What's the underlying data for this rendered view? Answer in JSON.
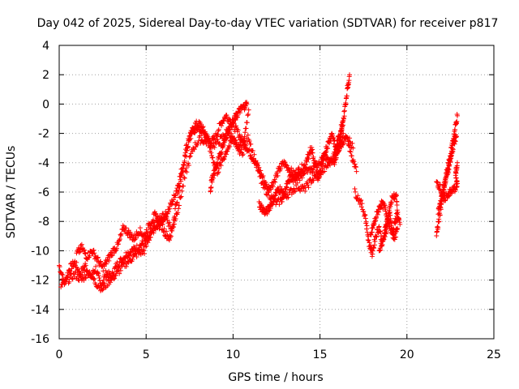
{
  "chart_data": {
    "type": "scatter",
    "title": "Day 042 of 2025, Sidereal Day-to-day VTEC variation (SDTVAR) for receiver p817",
    "xlabel": "GPS time / hours",
    "ylabel": "SDTVAR / TECUs",
    "xlim": [
      0,
      25
    ],
    "ylim": [
      -16,
      4
    ],
    "xticks": [
      "0",
      "5",
      "10",
      "15",
      "20",
      "25"
    ],
    "yticks": [
      "4",
      "2",
      "0",
      "-2",
      "-4",
      "-6",
      "-8",
      "-10",
      "-12",
      "-14",
      "-16"
    ],
    "grid": true,
    "marker": "+",
    "series": [
      {
        "name": "SDTVAR",
        "color": "#ff0000",
        "traces": [
          [
            [
              0.0,
              -11.0
            ],
            [
              0.3,
              -12.2
            ],
            [
              0.6,
              -11.2
            ],
            [
              0.9,
              -10.8
            ],
            [
              1.2,
              -11.6
            ],
            [
              1.5,
              -11.0
            ],
            [
              1.8,
              -11.8
            ],
            [
              2.1,
              -11.2
            ],
            [
              2.4,
              -12.4
            ],
            [
              2.7,
              -11.5
            ],
            [
              3.0,
              -11.8
            ],
            [
              3.3,
              -11.0
            ],
            [
              3.6,
              -10.6
            ],
            [
              3.9,
              -10.2
            ],
            [
              4.2,
              -10.0
            ],
            [
              4.5,
              -9.8
            ],
            [
              4.8,
              -9.5
            ],
            [
              5.1,
              -9.2
            ],
            [
              5.4,
              -8.6
            ],
            [
              5.7,
              -8.4
            ],
            [
              6.0,
              -7.8
            ],
            [
              6.3,
              -7.2
            ],
            [
              6.6,
              -6.4
            ],
            [
              6.9,
              -5.2
            ],
            [
              7.2,
              -3.8
            ],
            [
              7.5,
              -2.3
            ],
            [
              7.8,
              -1.4
            ],
            [
              8.1,
              -1.4
            ],
            [
              8.4,
              -2.0
            ],
            [
              8.7,
              -2.7
            ],
            [
              9.0,
              -2.2
            ],
            [
              9.3,
              -1.3
            ],
            [
              9.6,
              -0.8
            ],
            [
              9.9,
              -1.2
            ],
            [
              10.2,
              -1.8
            ],
            [
              10.5,
              -2.4
            ],
            [
              10.8,
              -3.0
            ],
            [
              11.1,
              -3.6
            ],
            [
              11.4,
              -4.2
            ],
            [
              11.7,
              -5.0
            ],
            [
              12.0,
              -5.8
            ],
            [
              12.3,
              -5.4
            ],
            [
              12.6,
              -4.6
            ],
            [
              12.9,
              -4.0
            ],
            [
              13.2,
              -4.4
            ],
            [
              13.5,
              -4.8
            ],
            [
              13.8,
              -4.5
            ],
            [
              14.1,
              -4.2
            ],
            [
              14.4,
              -4.6
            ],
            [
              14.7,
              -4.3
            ],
            [
              15.0,
              -4.0
            ],
            [
              15.3,
              -3.6
            ],
            [
              15.6,
              -4.0
            ],
            [
              15.9,
              -3.4
            ],
            [
              16.2,
              -2.8
            ],
            [
              16.5,
              -2.2
            ],
            [
              16.8,
              -3.4
            ],
            [
              17.1,
              -4.6
            ]
          ],
          [
            [
              0.1,
              -12.4
            ],
            [
              0.5,
              -12.0
            ],
            [
              0.9,
              -11.6
            ],
            [
              1.3,
              -12.0
            ],
            [
              1.7,
              -11.4
            ],
            [
              2.1,
              -12.2
            ],
            [
              2.5,
              -12.6
            ],
            [
              2.9,
              -12.0
            ],
            [
              3.3,
              -11.6
            ],
            [
              3.7,
              -11.0
            ],
            [
              4.1,
              -10.6
            ],
            [
              4.5,
              -10.2
            ],
            [
              4.9,
              -10.0
            ],
            [
              5.3,
              -8.8
            ],
            [
              5.7,
              -7.8
            ],
            [
              6.1,
              -7.6
            ],
            [
              6.5,
              -8.6
            ],
            [
              6.9,
              -6.8
            ],
            [
              7.3,
              -4.6
            ],
            [
              7.7,
              -3.0
            ],
            [
              8.1,
              -2.4
            ],
            [
              8.5,
              -2.6
            ],
            [
              8.9,
              -2.8
            ],
            [
              9.3,
              -2.4
            ],
            [
              9.7,
              -1.8
            ],
            [
              10.1,
              -2.6
            ],
            [
              10.5,
              -3.4
            ],
            [
              10.9,
              -2.2
            ],
            [
              11.3,
              -4.0
            ],
            [
              11.7,
              -5.6
            ],
            [
              12.1,
              -6.2
            ],
            [
              12.5,
              -6.8
            ],
            [
              12.9,
              -6.4
            ],
            [
              13.3,
              -6.0
            ],
            [
              13.7,
              -5.6
            ],
            [
              14.1,
              -5.8
            ],
            [
              14.5,
              -5.2
            ],
            [
              14.9,
              -4.8
            ],
            [
              15.3,
              -4.4
            ],
            [
              15.7,
              -3.8
            ],
            [
              16.1,
              -2.6
            ],
            [
              16.5,
              -2.0
            ],
            [
              16.9,
              -3.0
            ]
          ],
          [
            [
              1.0,
              -10.2
            ],
            [
              1.3,
              -9.8
            ],
            [
              1.6,
              -10.4
            ],
            [
              1.9,
              -10.0
            ],
            [
              2.2,
              -10.6
            ],
            [
              2.5,
              -11.2
            ],
            [
              2.8,
              -10.6
            ],
            [
              3.1,
              -10.0
            ],
            [
              3.4,
              -9.6
            ],
            [
              3.7,
              -8.4
            ],
            [
              4.0,
              -8.8
            ],
            [
              4.3,
              -9.2
            ],
            [
              4.6,
              -8.6
            ],
            [
              4.9,
              -9.0
            ],
            [
              5.2,
              -8.2
            ],
            [
              5.5,
              -7.6
            ],
            [
              5.8,
              -8.0
            ],
            [
              6.1,
              -8.8
            ],
            [
              6.4,
              -9.2
            ],
            [
              6.7,
              -7.0
            ],
            [
              7.0,
              -5.2
            ],
            [
              7.3,
              -3.0
            ],
            [
              7.6,
              -2.0
            ],
            [
              7.9,
              -1.6
            ],
            [
              8.2,
              -1.8
            ],
            [
              8.5,
              -2.2
            ],
            [
              8.8,
              -3.6
            ],
            [
              9.1,
              -4.6
            ],
            [
              9.4,
              -3.8
            ],
            [
              9.7,
              -3.0
            ],
            [
              10.0,
              -2.4
            ],
            [
              10.3,
              -3.0
            ],
            [
              10.6,
              -2.6
            ],
            [
              10.9,
              -0.4
            ]
          ],
          [
            [
              8.7,
              -5.8
            ],
            [
              8.8,
              -5.0
            ],
            [
              9.0,
              -4.4
            ],
            [
              9.2,
              -3.6
            ],
            [
              9.4,
              -2.8
            ],
            [
              9.6,
              -2.2
            ],
            [
              9.8,
              -1.6
            ],
            [
              10.0,
              -1.2
            ],
            [
              10.2,
              -0.8
            ],
            [
              10.4,
              -0.4
            ],
            [
              10.6,
              -0.2
            ],
            [
              10.8,
              0.0
            ]
          ],
          [
            [
              11.5,
              -6.8
            ],
            [
              11.7,
              -7.2
            ],
            [
              11.9,
              -7.4
            ],
            [
              12.1,
              -7.0
            ],
            [
              12.3,
              -6.6
            ],
            [
              12.5,
              -6.0
            ],
            [
              12.7,
              -5.8
            ],
            [
              12.9,
              -6.2
            ],
            [
              13.1,
              -5.6
            ],
            [
              13.3,
              -5.0
            ],
            [
              13.5,
              -5.2
            ],
            [
              13.7,
              -4.8
            ],
            [
              13.9,
              -5.0
            ],
            [
              14.1,
              -4.6
            ],
            [
              14.3,
              -3.6
            ],
            [
              14.5,
              -3.0
            ],
            [
              14.7,
              -4.0
            ],
            [
              14.9,
              -5.2
            ],
            [
              15.1,
              -4.2
            ],
            [
              15.3,
              -3.2
            ],
            [
              15.5,
              -2.6
            ],
            [
              15.7,
              -2.0
            ],
            [
              15.9,
              -3.0
            ],
            [
              16.1,
              -2.2
            ],
            [
              16.3,
              -1.2
            ]
          ],
          [
            [
              15.8,
              -4.0
            ],
            [
              15.95,
              -3.4
            ],
            [
              16.1,
              -2.6
            ],
            [
              16.25,
              -1.8
            ],
            [
              16.4,
              -0.6
            ],
            [
              16.55,
              0.8
            ],
            [
              16.7,
              2.0
            ]
          ],
          [
            [
              17.0,
              -6.0
            ],
            [
              17.3,
              -6.6
            ],
            [
              17.6,
              -7.6
            ],
            [
              17.8,
              -9.4
            ],
            [
              18.0,
              -10.2
            ],
            [
              18.2,
              -9.0
            ],
            [
              18.4,
              -8.4
            ],
            [
              18.6,
              -9.6
            ],
            [
              18.8,
              -8.2
            ],
            [
              19.0,
              -7.4
            ],
            [
              19.2,
              -8.8
            ],
            [
              19.4,
              -7.6
            ],
            [
              19.6,
              -8.2
            ]
          ],
          [
            [
              17.9,
              -9.0
            ],
            [
              18.1,
              -8.2
            ],
            [
              18.3,
              -7.4
            ],
            [
              18.5,
              -6.8
            ],
            [
              18.7,
              -7.0
            ],
            [
              18.9,
              -7.8
            ],
            [
              19.1,
              -8.6
            ],
            [
              19.3,
              -9.2
            ],
            [
              19.5,
              -8.0
            ],
            [
              19.4,
              -6.4
            ],
            [
              19.2,
              -6.2
            ],
            [
              19.0,
              -7.2
            ],
            [
              18.8,
              -8.6
            ],
            [
              18.6,
              -9.4
            ],
            [
              18.4,
              -10.0
            ]
          ],
          [
            [
              21.7,
              -9.0
            ],
            [
              21.85,
              -7.8
            ],
            [
              22.0,
              -6.6
            ],
            [
              22.15,
              -5.6
            ],
            [
              22.3,
              -4.6
            ],
            [
              22.45,
              -3.8
            ],
            [
              22.6,
              -2.8
            ],
            [
              22.75,
              -1.8
            ],
            [
              22.9,
              -0.8
            ]
          ],
          [
            [
              21.8,
              -7.4
            ],
            [
              21.95,
              -6.6
            ],
            [
              22.1,
              -5.8
            ],
            [
              22.25,
              -5.0
            ],
            [
              22.4,
              -4.4
            ],
            [
              22.55,
              -3.6
            ],
            [
              22.7,
              -2.6
            ],
            [
              22.85,
              -2.2
            ]
          ],
          [
            [
              21.7,
              -5.4
            ],
            [
              21.9,
              -5.6
            ],
            [
              22.1,
              -6.6
            ],
            [
              22.3,
              -6.2
            ],
            [
              22.5,
              -6.0
            ],
            [
              22.7,
              -5.8
            ],
            [
              22.9,
              -5.6
            ],
            [
              22.8,
              -4.8
            ],
            [
              22.9,
              -4.0
            ]
          ]
        ]
      }
    ]
  }
}
